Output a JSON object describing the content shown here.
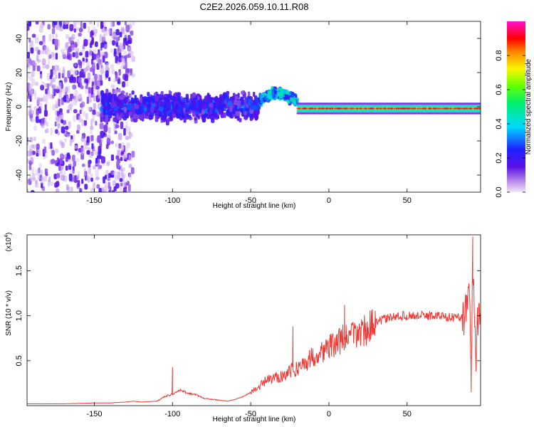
{
  "title": "C2E2.2026.059.10.11.R08",
  "colors": {
    "snr_line": "#ee3a35",
    "frame": "#000000"
  },
  "chart_data": [
    {
      "type": "heatmap",
      "name": "spectrogram",
      "xlabel": "Height of straight line (km)",
      "ylabel": "Frequency (Hz)",
      "xlim": [
        -193,
        97
      ],
      "ylim": [
        -50,
        50
      ],
      "xticks": [
        -150,
        -100,
        -50,
        0,
        50
      ],
      "yticks": [
        -40,
        -20,
        0,
        20,
        40
      ],
      "xtick_labels": [
        "-150",
        "-100",
        "-50",
        "0",
        "50"
      ],
      "ytick_labels": [
        "-40",
        "-20",
        "0",
        "20",
        "40"
      ],
      "colorbar": {
        "label": "Normalized spectral amplitude",
        "range": [
          0,
          1
        ],
        "ticks": [
          0.0,
          0.2,
          0.4,
          0.6,
          0.8
        ],
        "tick_labels": [
          "0.0",
          "0.2",
          "0.4",
          "0.6",
          "0.8"
        ],
        "colormap": "rainbow (purple→blue→cyan→green→yellow→red→magenta)"
      },
      "features": [
        {
          "region": "scattered broadband noise",
          "x_range": [
            -193,
            -125
          ],
          "freq_range": [
            -50,
            50
          ],
          "amplitude": [
            0.02,
            0.2
          ]
        },
        {
          "region": "noisy band",
          "x_range": [
            -145,
            -45
          ],
          "freq_range": [
            -10,
            10
          ],
          "amplitude": [
            0.1,
            0.35
          ]
        },
        {
          "region": "rising hump",
          "x_range": [
            -45,
            -20
          ],
          "center_freq": [
            3,
            8
          ],
          "amplitude": [
            0.2,
            0.5
          ]
        },
        {
          "region": "steady carrier line",
          "x_range": [
            -20,
            97
          ],
          "center_freq": -1,
          "amplitude": [
            0.8,
            0.95
          ]
        }
      ]
    },
    {
      "type": "line",
      "name": "snr",
      "xlabel": "Height of straight line (km)",
      "ylabel": "SNR (10 * v/v)",
      "scale_label": "(x10",
      "scale_exponent": "4",
      "xlim": [
        -193,
        97
      ],
      "ylim": [
        0,
        1.9
      ],
      "xticks": [
        -150,
        -100,
        -50,
        0,
        50
      ],
      "yticks": [
        0.5,
        1.0,
        1.5
      ],
      "xtick_labels": [
        "-150",
        "-100",
        "-50",
        "0",
        "50"
      ],
      "ytick_labels": [
        "0.5",
        "1.0",
        "1.5"
      ],
      "series": [
        {
          "name": "SNR",
          "x": [
            -193,
            -170,
            -150,
            -140,
            -130,
            -125,
            -120,
            -110,
            -105,
            -100,
            -95,
            -90,
            -85,
            -80,
            -75,
            -70,
            -65,
            -60,
            -55,
            -50,
            -45,
            -40,
            -35,
            -30,
            -25,
            -20,
            -15,
            -10,
            -5,
            0,
            5,
            10,
            15,
            20,
            25,
            30,
            35,
            40,
            45,
            50,
            55,
            60,
            65,
            70,
            75,
            80,
            85,
            88,
            90,
            91,
            92,
            93,
            94,
            95,
            97
          ],
          "y": [
            0.02,
            0.02,
            0.03,
            0.03,
            0.04,
            0.05,
            0.04,
            0.05,
            0.1,
            0.13,
            0.17,
            0.14,
            0.12,
            0.08,
            0.07,
            0.06,
            0.05,
            0.07,
            0.1,
            0.15,
            0.2,
            0.28,
            0.3,
            0.34,
            0.38,
            0.42,
            0.48,
            0.55,
            0.6,
            0.65,
            0.7,
            0.75,
            0.78,
            0.82,
            0.86,
            0.92,
            0.96,
            0.98,
            1.0,
            1.0,
            1.0,
            1.0,
            1.0,
            1.0,
            0.99,
            0.98,
            0.99,
            1.05,
            1.2,
            0.3,
            1.75,
            1.1,
            0.4,
            0.98,
            1.0
          ]
        }
      ],
      "spikes": [
        {
          "x": -100,
          "y": 0.43
        },
        {
          "x": -23,
          "y": 0.88
        },
        {
          "x": 10,
          "y": 1.12
        },
        {
          "x": 91,
          "y": 0.15
        },
        {
          "x": 92,
          "y": 1.88
        }
      ]
    }
  ]
}
